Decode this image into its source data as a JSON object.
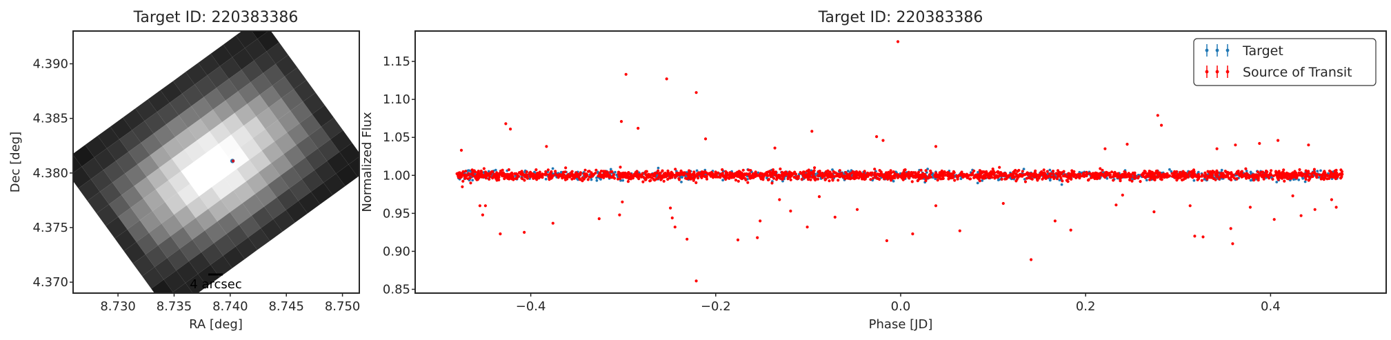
{
  "chart_data": [
    {
      "type": "image",
      "title": "Target ID: 220383386",
      "xlabel": "RA [deg]",
      "ylabel": "Dec [deg]",
      "xlim": [
        8.726,
        8.7515
      ],
      "ylim": [
        4.369,
        4.393
      ],
      "xticks": [
        8.73,
        8.735,
        8.74,
        8.745,
        8.75
      ],
      "xtick_labels": [
        "8.730",
        "8.735",
        "8.740",
        "8.745",
        "8.750"
      ],
      "yticks": [
        4.37,
        4.375,
        4.38,
        4.385,
        4.39
      ],
      "ytick_labels": [
        "4.370",
        "4.375",
        "4.380",
        "4.385",
        "4.390"
      ],
      "colormap": "grayscale",
      "target_position": [
        8.7402,
        4.3811
      ],
      "scale_bar_label": "4 arcsec",
      "marker_colors": [
        "#1f77b4",
        "#ff0000"
      ]
    },
    {
      "type": "scatter",
      "title": "Target ID: 220383386",
      "xlabel": "Phase [JD]",
      "ylabel": "Normalized Flux",
      "xlim": [
        -0.525,
        0.525
      ],
      "ylim": [
        0.845,
        1.19
      ],
      "xticks": [
        -0.4,
        -0.2,
        0.0,
        0.2,
        0.4
      ],
      "xtick_labels": [
        "−0.4",
        "−0.2",
        "0.0",
        "0.2",
        "0.4"
      ],
      "yticks": [
        0.85,
        0.9,
        0.95,
        1.0,
        1.05,
        1.1,
        1.15
      ],
      "ytick_labels": [
        "0.85",
        "0.90",
        "0.95",
        "1.00",
        "1.05",
        "1.10",
        "1.15"
      ],
      "legend_position": "top-right",
      "series": [
        {
          "name": "Target",
          "color": "#1f77b4",
          "x_range": [
            -0.48,
            0.48
          ],
          "baseline": 1.0,
          "scatter": 0.003
        },
        {
          "name": "Source of Transit",
          "color": "#ff0000",
          "x_range": [
            -0.48,
            0.48
          ],
          "baseline": 1.0,
          "scatter": 0.003,
          "outliers": [
            [
              -0.003,
              1.176
            ],
            [
              -0.297,
              1.133
            ],
            [
              -0.253,
              1.127
            ],
            [
              -0.221,
              1.109
            ],
            [
              0.278,
              1.079
            ],
            [
              -0.302,
              1.071
            ],
            [
              0.282,
              1.066
            ],
            [
              -0.427,
              1.068
            ],
            [
              -0.422,
              1.061
            ],
            [
              -0.284,
              1.062
            ],
            [
              -0.096,
              1.058
            ],
            [
              -0.211,
              1.048
            ],
            [
              -0.026,
              1.051
            ],
            [
              0.408,
              1.046
            ],
            [
              0.441,
              1.04
            ],
            [
              -0.475,
              1.033
            ],
            [
              -0.383,
              1.038
            ],
            [
              -0.136,
              1.036
            ],
            [
              -0.019,
              1.046
            ],
            [
              0.038,
              1.038
            ],
            [
              0.342,
              1.035
            ],
            [
              0.362,
              1.04
            ],
            [
              0.388,
              1.042
            ],
            [
              -0.442,
              1.005
            ],
            [
              0.221,
              1.035
            ],
            [
              0.245,
              1.041
            ],
            [
              -0.474,
              0.985
            ],
            [
              -0.465,
              0.99
            ],
            [
              -0.455,
              0.96
            ],
            [
              -0.449,
              0.96
            ],
            [
              -0.452,
              0.948
            ],
            [
              -0.433,
              0.923
            ],
            [
              -0.407,
              0.925
            ],
            [
              -0.376,
              0.937
            ],
            [
              -0.326,
              0.943
            ],
            [
              -0.301,
              0.965
            ],
            [
              -0.304,
              0.948
            ],
            [
              -0.249,
              0.957
            ],
            [
              -0.247,
              0.944
            ],
            [
              -0.244,
              0.932
            ],
            [
              -0.231,
              0.916
            ],
            [
              -0.221,
              0.861
            ],
            [
              -0.176,
              0.915
            ],
            [
              -0.155,
              0.918
            ],
            [
              -0.152,
              0.94
            ],
            [
              -0.131,
              0.968
            ],
            [
              -0.119,
              0.953
            ],
            [
              -0.101,
              0.932
            ],
            [
              -0.088,
              0.972
            ],
            [
              -0.071,
              0.945
            ],
            [
              -0.047,
              0.955
            ],
            [
              -0.015,
              0.914
            ],
            [
              0.013,
              0.923
            ],
            [
              0.038,
              0.96
            ],
            [
              0.064,
              0.927
            ],
            [
              0.111,
              0.963
            ],
            [
              0.141,
              0.889
            ],
            [
              0.167,
              0.94
            ],
            [
              0.184,
              0.928
            ],
            [
              0.233,
              0.961
            ],
            [
              0.24,
              0.974
            ],
            [
              0.274,
              0.952
            ],
            [
              0.313,
              0.96
            ],
            [
              0.318,
              0.92
            ],
            [
              0.327,
              0.919
            ],
            [
              0.357,
              0.93
            ],
            [
              0.359,
              0.91
            ],
            [
              0.378,
              0.958
            ],
            [
              0.404,
              0.942
            ],
            [
              0.424,
              0.973
            ],
            [
              0.433,
              0.947
            ],
            [
              0.448,
              0.955
            ],
            [
              0.466,
              0.968
            ],
            [
              0.471,
              0.958
            ]
          ]
        }
      ]
    }
  ]
}
